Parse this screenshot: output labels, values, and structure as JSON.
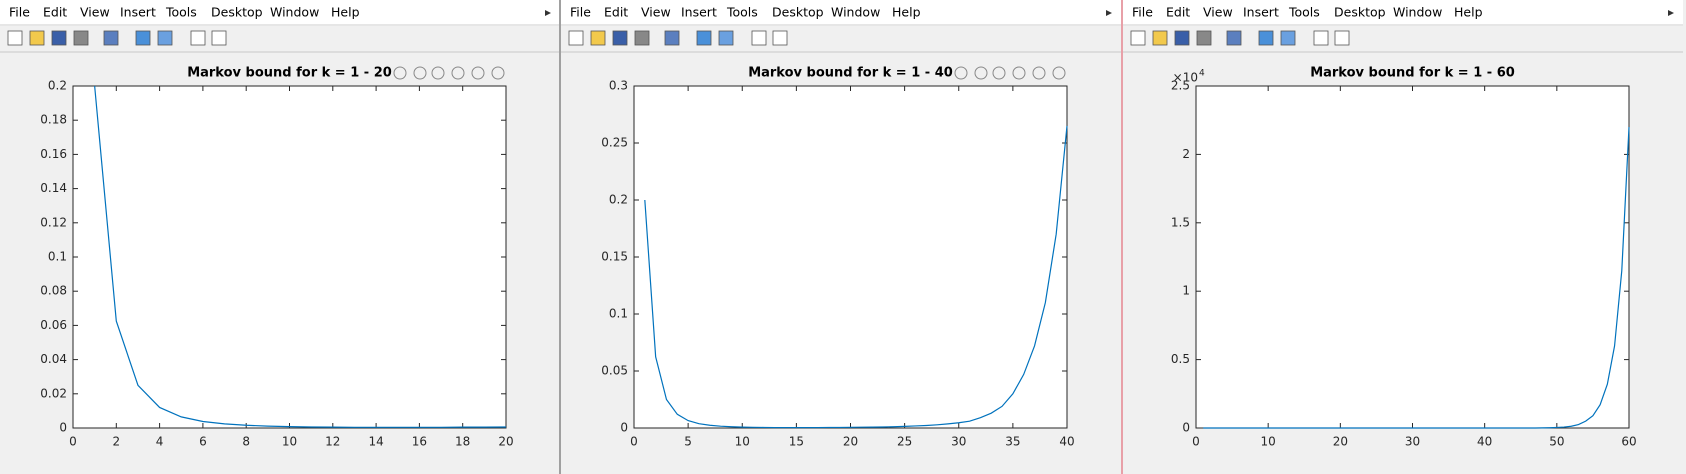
{
  "menu": [
    "File",
    "Edit",
    "View",
    "Insert",
    "Tools",
    "Desktop",
    "Window",
    "Help"
  ],
  "chart_data": [
    {
      "type": "line",
      "title": "Markov bound for k = 1 - 20",
      "x": [
        1,
        2,
        3,
        4,
        5,
        6,
        7,
        8,
        9,
        10,
        11,
        12,
        13,
        14,
        15,
        16,
        17,
        18,
        19,
        20
      ],
      "series": [
        {
          "color": "#0072bd",
          "values": [
            0.2,
            0.0625,
            0.025,
            0.012,
            0.0065,
            0.0038,
            0.0024,
            0.0016,
            0.0011,
            0.0008,
            0.0006,
            0.0005,
            0.0004,
            0.0004,
            0.0004,
            0.0004,
            0.0004,
            0.0005,
            0.0005,
            0.0006
          ]
        }
      ],
      "xlim": [
        0,
        20
      ],
      "xticks": [
        0,
        2,
        4,
        6,
        8,
        10,
        12,
        14,
        16,
        18,
        20
      ],
      "ylim": [
        0,
        0.2
      ],
      "yticks": [
        0,
        0.02,
        0.04,
        0.06,
        0.08,
        0.1,
        0.12,
        0.14,
        0.16,
        0.18,
        0.2
      ]
    },
    {
      "type": "line",
      "title": "Markov bound for k = 1 - 40",
      "x": [
        1,
        2,
        3,
        4,
        5,
        6,
        7,
        8,
        9,
        10,
        11,
        12,
        13,
        14,
        15,
        16,
        17,
        18,
        19,
        20,
        21,
        22,
        23,
        24,
        25,
        26,
        27,
        28,
        29,
        30,
        31,
        32,
        33,
        34,
        35,
        36,
        37,
        38,
        39,
        40
      ],
      "series": [
        {
          "color": "#0072bd",
          "values": [
            0.2,
            0.0625,
            0.025,
            0.012,
            0.0065,
            0.0038,
            0.0024,
            0.0016,
            0.0011,
            0.0008,
            0.0006,
            0.0005,
            0.0004,
            0.0004,
            0.0004,
            0.0004,
            0.0004,
            0.0005,
            0.0005,
            0.0006,
            0.0007,
            0.0008,
            0.0009,
            0.0011,
            0.0014,
            0.0018,
            0.0022,
            0.0028,
            0.0036,
            0.0046,
            0.006,
            0.009,
            0.013,
            0.019,
            0.03,
            0.047,
            0.072,
            0.11,
            0.17,
            0.265
          ]
        }
      ],
      "xlim": [
        0,
        40
      ],
      "xticks": [
        0,
        5,
        10,
        15,
        20,
        25,
        30,
        35,
        40
      ],
      "ylim": [
        0,
        0.3
      ],
      "yticks": [
        0,
        0.05,
        0.1,
        0.15,
        0.2,
        0.25,
        0.3
      ]
    },
    {
      "type": "line",
      "title": "Markov bound for k = 1 - 60",
      "x": [
        1,
        2,
        3,
        4,
        5,
        6,
        7,
        8,
        9,
        10,
        11,
        12,
        13,
        14,
        15,
        16,
        17,
        18,
        19,
        20,
        21,
        22,
        23,
        24,
        25,
        26,
        27,
        28,
        29,
        30,
        31,
        32,
        33,
        34,
        35,
        36,
        37,
        38,
        39,
        40,
        41,
        42,
        43,
        44,
        45,
        46,
        47,
        48,
        49,
        50,
        51,
        52,
        53,
        54,
        55,
        56,
        57,
        58,
        59,
        60
      ],
      "series": [
        {
          "color": "#0072bd",
          "values": [
            0,
            0,
            0,
            0,
            0,
            0,
            0,
            0,
            0,
            0,
            0,
            0,
            0,
            0,
            0,
            0,
            0,
            0,
            0,
            0,
            0,
            0,
            0,
            0,
            0,
            0,
            0,
            0,
            0,
            0,
            0,
            0,
            0,
            0,
            0,
            0,
            0,
            0,
            0,
            0,
            0,
            0,
            0,
            0,
            0,
            0,
            0,
            0.001,
            0.002,
            0.004,
            0.007,
            0.013,
            0.025,
            0.05,
            0.09,
            0.17,
            0.32,
            0.6,
            1.15,
            2.2
          ]
        }
      ],
      "xlim": [
        0,
        60
      ],
      "xticks": [
        0,
        10,
        20,
        30,
        40,
        50,
        60
      ],
      "ylim": [
        0,
        2.5
      ],
      "yticks": [
        0,
        0.5,
        1,
        1.5,
        2,
        2.5
      ],
      "y_scale_base": "×10",
      "y_scale_exponent": "4"
    }
  ]
}
